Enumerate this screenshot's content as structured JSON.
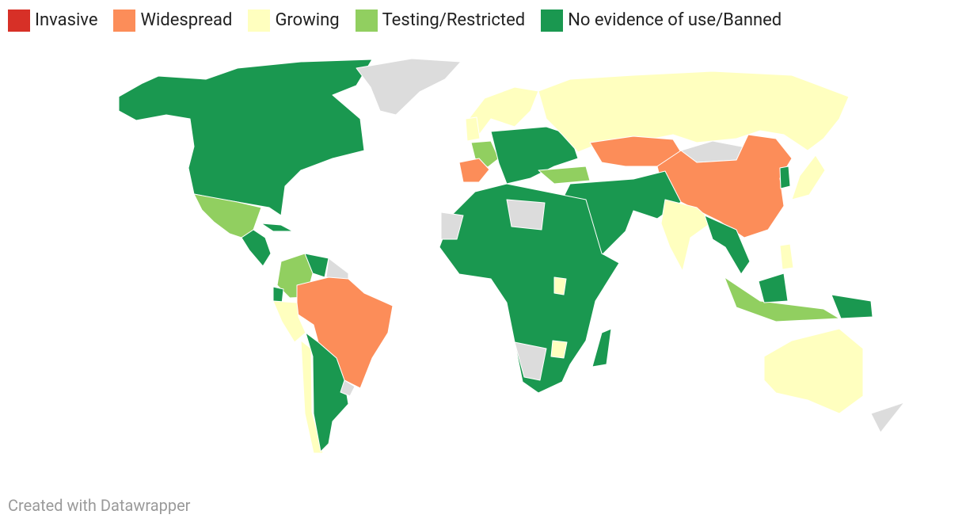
{
  "legend": {
    "items": [
      {
        "label": "Invasive",
        "color": "#d73027"
      },
      {
        "label": "Widespread",
        "color": "#fc8d59"
      },
      {
        "label": "Growing",
        "color": "#ffffbf"
      },
      {
        "label": "Testing/Restricted",
        "color": "#91cf60"
      },
      {
        "label": "No evidence of use/Banned",
        "color": "#1a9850"
      }
    ]
  },
  "footer": {
    "credit": "Created with Datawrapper"
  }
}
